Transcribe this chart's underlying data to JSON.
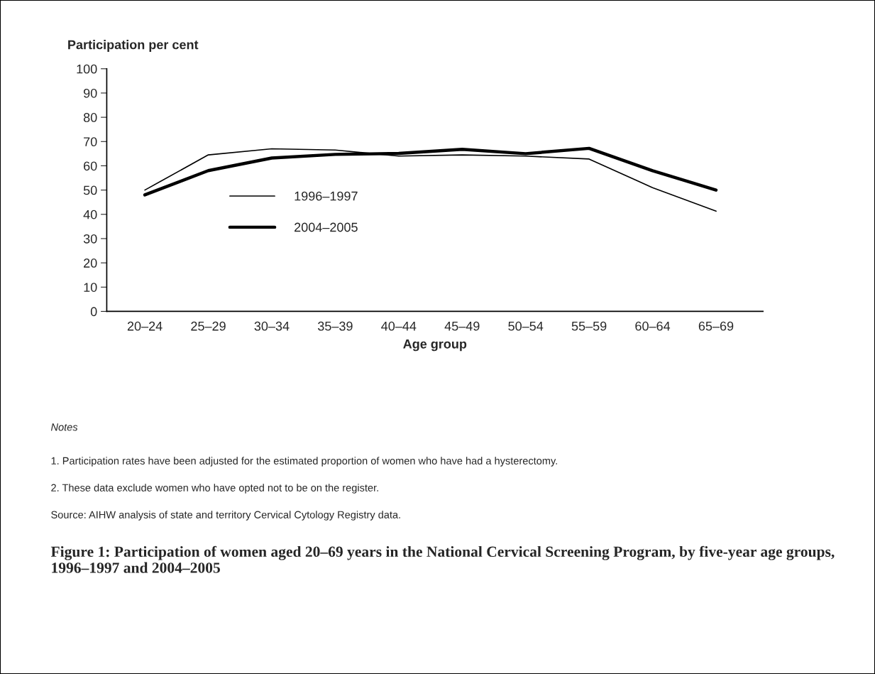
{
  "chart_data": {
    "type": "line",
    "title": "Figure 1: Participation of women aged 20–69 years in the National Cervical Screening Program, by five-year age groups, 1996–1997 and 2004–2005",
    "xlabel": "Age group",
    "ylabel": "Participation per cent",
    "categories": [
      "20–24",
      "25–29",
      "30–34",
      "35–39",
      "40–44",
      "45–49",
      "50–54",
      "55–59",
      "60–64",
      "65–69"
    ],
    "series": [
      {
        "name": "1996–1997",
        "color": "#000000",
        "values": [
          50,
          64.5,
          67,
          66.5,
          64,
          64.5,
          64,
          62.8,
          51,
          41.3
        ]
      },
      {
        "name": "2004–2005",
        "color": "#000000",
        "values": [
          48,
          58,
          63.2,
          64.7,
          65.1,
          66.8,
          65,
          67.2,
          58,
          50
        ]
      }
    ],
    "ylim": [
      0,
      100
    ],
    "yticks": [
      0,
      10,
      20,
      30,
      40,
      50,
      60,
      70,
      80,
      90,
      100
    ],
    "grid": false,
    "legend": "lower left",
    "marker": "none",
    "line_style": "solid",
    "annotations": [
      "Notes",
      "1. Participation rates have been adjusted for the estimated proportion of women who have had a hysterectomy.",
      "2. These data exclude women who have opted not to be on the register.",
      "Source: AIHW analysis of state and territory Cervical Cytology Registry data."
    ]
  }
}
